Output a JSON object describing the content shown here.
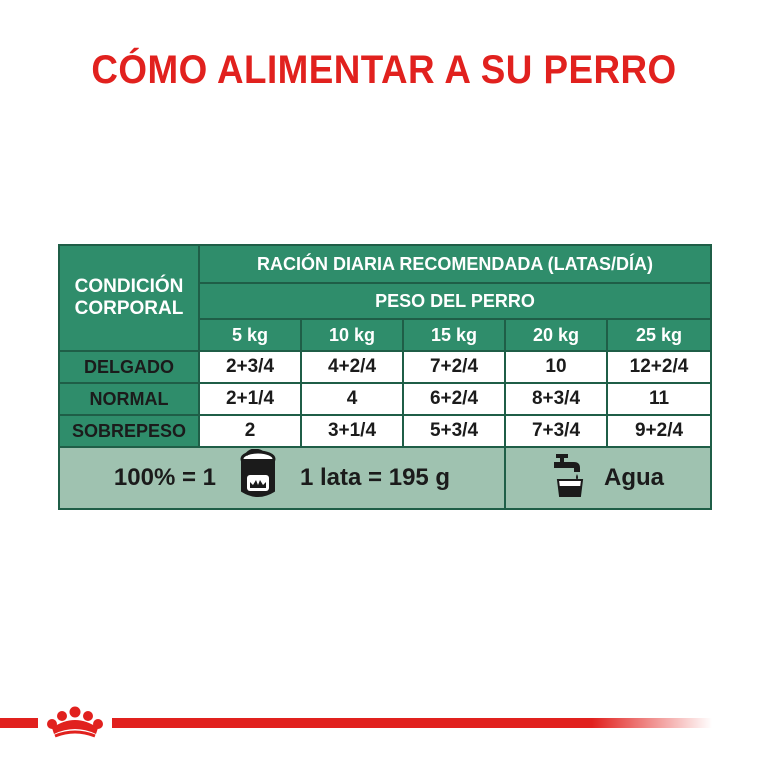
{
  "title": "CÓMO ALIMENTAR A SU PERRO",
  "table": {
    "condition_header": "CONDICIÓN CORPORAL",
    "daily_ration_header": "RACIÓN DIARIA RECOMENDADA (LATAS/DÍA)",
    "dog_weight_header": "PESO DEL PERRO",
    "weights": [
      "5 kg",
      "10 kg",
      "15 kg",
      "20 kg",
      "25 kg"
    ],
    "rows": [
      {
        "label": "DELGADO",
        "values": [
          "2+3/4",
          "4+2/4",
          "7+2/4",
          "10",
          "12+2/4"
        ]
      },
      {
        "label": "NORMAL",
        "values": [
          "2+1/4",
          "4",
          "6+2/4",
          "8+3/4",
          "11"
        ]
      },
      {
        "label": "SOBREPESO",
        "values": [
          "2",
          "3+1/4",
          "5+3/4",
          "7+3/4",
          "9+2/4"
        ]
      }
    ],
    "footer": {
      "equivalence_label": "100% = 1",
      "can_text": "1 lata = 195 g",
      "water_label": "Agua",
      "can_icon": "can-icon",
      "water_icon": "water-tap-icon"
    }
  },
  "colors": {
    "title_red": "#e1211e",
    "table_green": "#2f8d6b",
    "footer_green": "#9fc2b0",
    "border": "#1f5e47"
  },
  "logo": "royal-canin-crown-logo"
}
